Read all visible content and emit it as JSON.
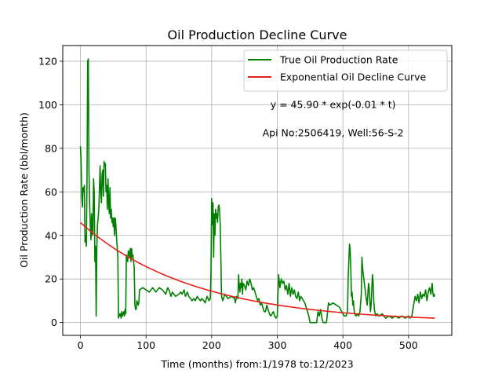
{
  "chart_data": {
    "type": "line",
    "title": "Oil Production Decline Curve",
    "xlabel": "Time (months) from:1/1978 to:12/2023",
    "ylabel": "Oil Production Rate (bbl/month)",
    "xlim": [
      -26.95,
      565.95
    ],
    "ylim": [
      -5.9,
      127.2
    ],
    "xticks": [
      0,
      100,
      200,
      300,
      400,
      500
    ],
    "yticks": [
      0,
      20,
      40,
      60,
      80,
      100,
      120
    ],
    "grid": true,
    "legend_position": "upper right",
    "annotations": [
      {
        "text": "y = 45.90 * exp(-0.01 * t)",
        "x": 385,
        "y": 98.5
      },
      {
        "text": "Api No:2506419, Well:56-S-2",
        "x": 385,
        "y": 85.5
      }
    ],
    "series": [
      {
        "name": "True Oil Production Rate",
        "color": "#008000",
        "points": [
          [
            0,
            81
          ],
          [
            1,
            75
          ],
          [
            2,
            58
          ],
          [
            3,
            53
          ],
          [
            4,
            62
          ],
          [
            5,
            60
          ],
          [
            6,
            63
          ],
          [
            7,
            37
          ],
          [
            8,
            40
          ],
          [
            9,
            35
          ],
          [
            10,
            65
          ],
          [
            11,
            120
          ],
          [
            12,
            121
          ],
          [
            13,
            70
          ],
          [
            14,
            55
          ],
          [
            15,
            45
          ],
          [
            16,
            38
          ],
          [
            17,
            50
          ],
          [
            18,
            40
          ],
          [
            19,
            42
          ],
          [
            20,
            66
          ],
          [
            21,
            60
          ],
          [
            22,
            28
          ],
          [
            23,
            35
          ],
          [
            24,
            3
          ],
          [
            25,
            35
          ],
          [
            26,
            45
          ],
          [
            27,
            48
          ],
          [
            28,
            52
          ],
          [
            29,
            62
          ],
          [
            30,
            72
          ],
          [
            31,
            60
          ],
          [
            32,
            55
          ],
          [
            33,
            68
          ],
          [
            34,
            70
          ],
          [
            35,
            58
          ],
          [
            36,
            74
          ],
          [
            37,
            72
          ],
          [
            38,
            73
          ],
          [
            39,
            60
          ],
          [
            40,
            63
          ],
          [
            41,
            52
          ],
          [
            42,
            66
          ],
          [
            43,
            55
          ],
          [
            44,
            50
          ],
          [
            45,
            62
          ],
          [
            46,
            48
          ],
          [
            47,
            52
          ],
          [
            48,
            46
          ],
          [
            49,
            48
          ],
          [
            50,
            44
          ],
          [
            51,
            48
          ],
          [
            52,
            40
          ],
          [
            53,
            48
          ],
          [
            54,
            45
          ],
          [
            55,
            39
          ],
          [
            56,
            35
          ],
          [
            57,
            30
          ],
          [
            58,
            2
          ],
          [
            59,
            4
          ],
          [
            60,
            3
          ],
          [
            61,
            4
          ],
          [
            62,
            2
          ],
          [
            63,
            5
          ],
          [
            64,
            3
          ],
          [
            65,
            4
          ],
          [
            66,
            5
          ],
          [
            67,
            3
          ],
          [
            68,
            6
          ],
          [
            69,
            4
          ],
          [
            70,
            31
          ],
          [
            71,
            30
          ],
          [
            72,
            28
          ],
          [
            73,
            33
          ],
          [
            74,
            32
          ],
          [
            75,
            30
          ],
          [
            76,
            34
          ],
          [
            77,
            28
          ],
          [
            78,
            34
          ],
          [
            79,
            30
          ],
          [
            80,
            31
          ],
          [
            81,
            28
          ],
          [
            82,
            25
          ],
          [
            83,
            8
          ],
          [
            84,
            6
          ],
          [
            85,
            6
          ],
          [
            86,
            10
          ],
          [
            87,
            9
          ],
          [
            88,
            8
          ],
          [
            89,
            9
          ],
          [
            90,
            15
          ],
          [
            95,
            16
          ],
          [
            100,
            15
          ],
          [
            105,
            14
          ],
          [
            110,
            16
          ],
          [
            115,
            14
          ],
          [
            120,
            16
          ],
          [
            125,
            15
          ],
          [
            130,
            13
          ],
          [
            133,
            16
          ],
          [
            135,
            15
          ],
          [
            138,
            12
          ],
          [
            140,
            14
          ],
          [
            145,
            12
          ],
          [
            150,
            13
          ],
          [
            153,
            14
          ],
          [
            155,
            13
          ],
          [
            158,
            15
          ],
          [
            160,
            12
          ],
          [
            163,
            14
          ],
          [
            165,
            12
          ],
          [
            168,
            11
          ],
          [
            170,
            10
          ],
          [
            173,
            11
          ],
          [
            175,
            10
          ],
          [
            178,
            12
          ],
          [
            180,
            11
          ],
          [
            183,
            10
          ],
          [
            185,
            11
          ],
          [
            188,
            10
          ],
          [
            190,
            9
          ],
          [
            193,
            12
          ],
          [
            196,
            10
          ],
          [
            198,
            11
          ],
          [
            199,
            25
          ],
          [
            200,
            57
          ],
          [
            201,
            45
          ],
          [
            202,
            55
          ],
          [
            203,
            30
          ],
          [
            204,
            50
          ],
          [
            205,
            40
          ],
          [
            206,
            52
          ],
          [
            207,
            48
          ],
          [
            208,
            50
          ],
          [
            209,
            46
          ],
          [
            210,
            53
          ],
          [
            211,
            54
          ],
          [
            212,
            52
          ],
          [
            213,
            45
          ],
          [
            214,
            30
          ],
          [
            215,
            12
          ],
          [
            217,
            10
          ],
          [
            220,
            13
          ],
          [
            225,
            11
          ],
          [
            230,
            12
          ],
          [
            235,
            11
          ],
          [
            236,
            9
          ],
          [
            238,
            12
          ],
          [
            240,
            11
          ],
          [
            241,
            22
          ],
          [
            242,
            17
          ],
          [
            243,
            14
          ],
          [
            244,
            18
          ],
          [
            245,
            16
          ],
          [
            246,
            20
          ],
          [
            247,
            13
          ],
          [
            248,
            18
          ],
          [
            250,
            17
          ],
          [
            252,
            15
          ],
          [
            254,
            19
          ],
          [
            256,
            17
          ],
          [
            258,
            20
          ],
          [
            260,
            18
          ],
          [
            262,
            15
          ],
          [
            264,
            16
          ],
          [
            266,
            14
          ],
          [
            268,
            12
          ],
          [
            270,
            10
          ],
          [
            272,
            11
          ],
          [
            274,
            8
          ],
          [
            276,
            9
          ],
          [
            278,
            7
          ],
          [
            280,
            5
          ],
          [
            282,
            5
          ],
          [
            284,
            8
          ],
          [
            286,
            6
          ],
          [
            288,
            4
          ],
          [
            290,
            3
          ],
          [
            292,
            4
          ],
          [
            294,
            5
          ],
          [
            296,
            3
          ],
          [
            298,
            2
          ],
          [
            300,
            3
          ],
          [
            302,
            22
          ],
          [
            304,
            16
          ],
          [
            306,
            20
          ],
          [
            308,
            18
          ],
          [
            310,
            19
          ],
          [
            312,
            15
          ],
          [
            314,
            17
          ],
          [
            316,
            13
          ],
          [
            318,
            18
          ],
          [
            320,
            12
          ],
          [
            322,
            16
          ],
          [
            324,
            13
          ],
          [
            326,
            15
          ],
          [
            328,
            12
          ],
          [
            330,
            11
          ],
          [
            332,
            14
          ],
          [
            334,
            10
          ],
          [
            336,
            12
          ],
          [
            338,
            11
          ],
          [
            340,
            10
          ],
          [
            342,
            9
          ],
          [
            344,
            7
          ],
          [
            346,
            5
          ],
          [
            348,
            3
          ],
          [
            350,
            0
          ],
          [
            360,
            0
          ],
          [
            362,
            5
          ],
          [
            364,
            3
          ],
          [
            366,
            6
          ],
          [
            368,
            2
          ],
          [
            370,
            0
          ],
          [
            375,
            0
          ],
          [
            378,
            9
          ],
          [
            380,
            8
          ],
          [
            385,
            9
          ],
          [
            390,
            8
          ],
          [
            395,
            7
          ],
          [
            398,
            5
          ],
          [
            400,
            4
          ],
          [
            402,
            3
          ],
          [
            405,
            3
          ],
          [
            407,
            5
          ],
          [
            408,
            20
          ],
          [
            409,
            28
          ],
          [
            410,
            36
          ],
          [
            411,
            34
          ],
          [
            412,
            25
          ],
          [
            413,
            12
          ],
          [
            414,
            14
          ],
          [
            415,
            8
          ],
          [
            416,
            10
          ],
          [
            417,
            6
          ],
          [
            418,
            4
          ],
          [
            420,
            3
          ],
          [
            422,
            4
          ],
          [
            424,
            3
          ],
          [
            426,
            5
          ],
          [
            428,
            13
          ],
          [
            429,
            30
          ],
          [
            430,
            25
          ],
          [
            431,
            22
          ],
          [
            432,
            20
          ],
          [
            433,
            17
          ],
          [
            434,
            15
          ],
          [
            435,
            12
          ],
          [
            436,
            10
          ],
          [
            437,
            8
          ],
          [
            438,
            13
          ],
          [
            439,
            18
          ],
          [
            440,
            16
          ],
          [
            441,
            10
          ],
          [
            442,
            5
          ],
          [
            443,
            8
          ],
          [
            444,
            15
          ],
          [
            445,
            22
          ],
          [
            446,
            19
          ],
          [
            447,
            10
          ],
          [
            448,
            6
          ],
          [
            450,
            3
          ],
          [
            452,
            4
          ],
          [
            455,
            3
          ],
          [
            460,
            4
          ],
          [
            465,
            2
          ],
          [
            470,
            3
          ],
          [
            475,
            2
          ],
          [
            480,
            3
          ],
          [
            485,
            2
          ],
          [
            490,
            3
          ],
          [
            495,
            2
          ],
          [
            500,
            3
          ],
          [
            502,
            2
          ],
          [
            505,
            3
          ],
          [
            510,
            12
          ],
          [
            512,
            10
          ],
          [
            514,
            13
          ],
          [
            516,
            9
          ],
          [
            518,
            14
          ],
          [
            520,
            11
          ],
          [
            522,
            13
          ],
          [
            524,
            12
          ],
          [
            526,
            15
          ],
          [
            528,
            10
          ],
          [
            530,
            14
          ],
          [
            532,
            16
          ],
          [
            534,
            13
          ],
          [
            536,
            18
          ],
          [
            537,
            14
          ],
          [
            538,
            12
          ],
          [
            539,
            13
          ],
          [
            540,
            12
          ]
        ]
      },
      {
        "name": "Exponential Oil Decline Curve",
        "color": "#e8201a",
        "model": {
          "a": 45.9,
          "b": 0.0058
        },
        "x_range": [
          0,
          540
        ]
      }
    ]
  }
}
